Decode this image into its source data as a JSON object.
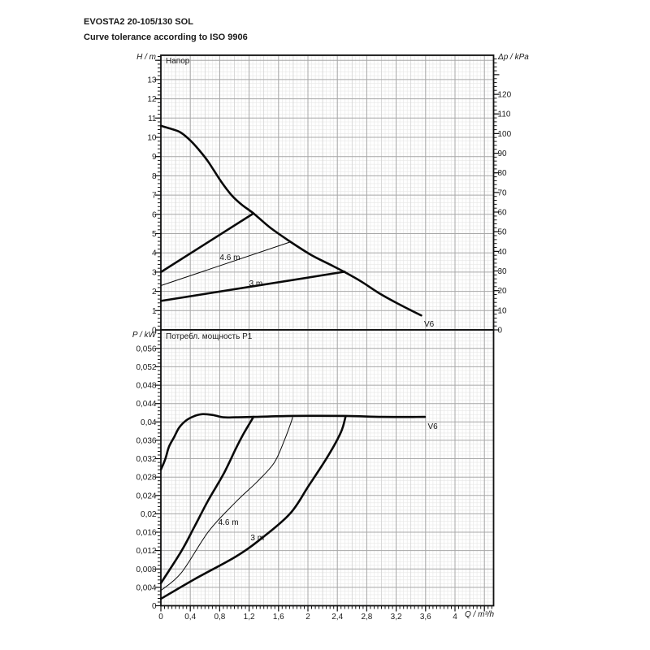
{
  "header": {
    "title": "EVOSTA2 20-105/130 SOL",
    "subtitle": "Curve tolerance according to ISO 9906"
  },
  "x_axis": {
    "label": "Q / m³/h",
    "min": 0,
    "max": 4.52,
    "minor_step": 0.05,
    "medium_step": 0.2,
    "major_step": 0.4,
    "ticks": [
      {
        "v": 0,
        "label": "0"
      },
      {
        "v": 0.4,
        "label": "0,4"
      },
      {
        "v": 0.8,
        "label": "0,8"
      },
      {
        "v": 1.2,
        "label": "1,2"
      },
      {
        "v": 1.6,
        "label": "1,6"
      },
      {
        "v": 2,
        "label": "2"
      },
      {
        "v": 2.4,
        "label": "2,4"
      },
      {
        "v": 2.8,
        "label": "2,8"
      },
      {
        "v": 3.2,
        "label": "3,2"
      },
      {
        "v": 3.6,
        "label": "3,6"
      },
      {
        "v": 4,
        "label": "4"
      }
    ]
  },
  "chart_data": [
    {
      "type": "line",
      "title": "Напор",
      "y_axis": {
        "label": "H / m",
        "min": 0,
        "max": 14.26,
        "minor_step": 0.2,
        "major_step": 1,
        "ticks": [
          {
            "v": 13,
            "label": "13"
          },
          {
            "v": 12,
            "label": "12"
          },
          {
            "v": 11,
            "label": "11"
          },
          {
            "v": 10,
            "label": "10"
          },
          {
            "v": 9,
            "label": "9"
          },
          {
            "v": 8,
            "label": "8"
          },
          {
            "v": 7,
            "label": "7"
          },
          {
            "v": 6,
            "label": "6"
          },
          {
            "v": 5,
            "label": "5"
          },
          {
            "v": 4,
            "label": "4"
          },
          {
            "v": 3,
            "label": "3"
          },
          {
            "v": 2,
            "label": "2"
          },
          {
            "v": 1,
            "label": "1"
          },
          {
            "v": 0,
            "label": "0"
          }
        ]
      },
      "y2_axis": {
        "label": "Δp / kPa",
        "min": 0,
        "max": 139.9,
        "minor_step": 2,
        "major_step": 10,
        "ticks": [
          {
            "v": 120,
            "label": "120"
          },
          {
            "v": 110,
            "label": "110"
          },
          {
            "v": 100,
            "label": "100"
          },
          {
            "v": 90,
            "label": "90"
          },
          {
            "v": 80,
            "label": "80"
          },
          {
            "v": 70,
            "label": "70"
          },
          {
            "v": 60,
            "label": "60"
          },
          {
            "v": 50,
            "label": "50"
          },
          {
            "v": 40,
            "label": "40"
          },
          {
            "v": 30,
            "label": "30"
          },
          {
            "v": 20,
            "label": "20"
          },
          {
            "v": 10,
            "label": "10"
          },
          {
            "v": 0,
            "label": "0"
          }
        ]
      },
      "series": [
        {
          "name": "max-speed-head-curve",
          "width": 2.6,
          "smooth": true,
          "points": [
            [
              0,
              10.6
            ],
            [
              0.13,
              10.45
            ],
            [
              0.27,
              10.25
            ],
            [
              0.41,
              9.8
            ],
            [
              0.55,
              9.2
            ],
            [
              0.65,
              8.7
            ],
            [
              0.82,
              7.7
            ],
            [
              0.96,
              7.0
            ],
            [
              1.1,
              6.5
            ],
            [
              1.26,
              6.05
            ],
            [
              1.49,
              5.3
            ],
            [
              1.76,
              4.58
            ],
            [
              2.04,
              3.9
            ],
            [
              2.27,
              3.45
            ],
            [
              2.49,
              3.02
            ],
            [
              2.73,
              2.5
            ],
            [
              2.97,
              1.9
            ],
            [
              3.23,
              1.35
            ],
            [
              3.54,
              0.75
            ]
          ]
        },
        {
          "name": "prop-pressure-6m-head",
          "width": 2.6,
          "smooth": false,
          "points": [
            [
              0,
              3.0
            ],
            [
              1.26,
              6.05
            ]
          ]
        },
        {
          "name": "prop-pressure-4.6m-head",
          "width": 1,
          "smooth": false,
          "points": [
            [
              0,
              2.3
            ],
            [
              1.77,
              4.58
            ]
          ]
        },
        {
          "name": "prop-pressure-3m-head",
          "width": 2.6,
          "smooth": false,
          "points": [
            [
              0,
              1.5
            ],
            [
              2.5,
              3.02
            ]
          ]
        }
      ],
      "annotations": [
        {
          "name": "label-4-6m-head",
          "text": "4.6 m",
          "x": 0.8,
          "y": 3.95
        },
        {
          "name": "label-3m-head",
          "text": "3 m",
          "x": 1.2,
          "y": 2.62
        },
        {
          "name": "label-v6-head",
          "text": "V6",
          "x": 3.58,
          "y": 0.52
        }
      ]
    },
    {
      "type": "line",
      "title": "Потребл. мощность P1",
      "y_axis": {
        "label": "P / kW",
        "min": 0,
        "max": 0.06,
        "minor_step": 0.0008,
        "major_step": 0.004,
        "ticks": [
          {
            "v": 0.056,
            "label": "0,056"
          },
          {
            "v": 0.052,
            "label": "0,052"
          },
          {
            "v": 0.048,
            "label": "0,048"
          },
          {
            "v": 0.044,
            "label": "0,044"
          },
          {
            "v": 0.04,
            "label": "0,04"
          },
          {
            "v": 0.036,
            "label": "0,036"
          },
          {
            "v": 0.032,
            "label": "0,032"
          },
          {
            "v": 0.028,
            "label": "0,028"
          },
          {
            "v": 0.024,
            "label": "0,024"
          },
          {
            "v": 0.02,
            "label": "0,02"
          },
          {
            "v": 0.016,
            "label": "0,016"
          },
          {
            "v": 0.012,
            "label": "0,012"
          },
          {
            "v": 0.008,
            "label": "0,008"
          },
          {
            "v": 0.004,
            "label": "0,004"
          },
          {
            "v": 0,
            "label": "0"
          }
        ]
      },
      "series": [
        {
          "name": "max-speed-power-curve",
          "width": 2.6,
          "smooth": true,
          "points": [
            [
              0,
              0.0296
            ],
            [
              0.06,
              0.0319
            ],
            [
              0.11,
              0.0346
            ],
            [
              0.18,
              0.0367
            ],
            [
              0.25,
              0.0388
            ],
            [
              0.35,
              0.0404
            ],
            [
              0.46,
              0.0413
            ],
            [
              0.57,
              0.0417
            ],
            [
              0.71,
              0.0415
            ],
            [
              0.85,
              0.041
            ],
            [
              1.02,
              0.041
            ],
            [
              1.26,
              0.0411
            ],
            [
              1.79,
              0.0413
            ],
            [
              2.51,
              0.0413
            ],
            [
              3.01,
              0.0411
            ],
            [
              3.59,
              0.0411
            ]
          ]
        },
        {
          "name": "prop-pressure-6m-power",
          "width": 2.6,
          "smooth": true,
          "points": [
            [
              0,
              0.0049
            ],
            [
              0.28,
              0.0119
            ],
            [
              0.46,
              0.0173
            ],
            [
              0.65,
              0.0231
            ],
            [
              0.85,
              0.0286
            ],
            [
              1.02,
              0.0342
            ],
            [
              1.13,
              0.0376
            ],
            [
              1.26,
              0.0411
            ]
          ]
        },
        {
          "name": "prop-pressure-4.6m-power",
          "width": 1,
          "smooth": true,
          "points": [
            [
              0,
              0.0033
            ],
            [
              0.28,
              0.0072
            ],
            [
              0.65,
              0.0162
            ],
            [
              1.02,
              0.0226
            ],
            [
              1.31,
              0.027
            ],
            [
              1.54,
              0.0311
            ],
            [
              1.68,
              0.036
            ],
            [
              1.77,
              0.0399
            ],
            [
              1.79,
              0.041
            ]
          ]
        },
        {
          "name": "prop-pressure-3m-power",
          "width": 2.6,
          "smooth": true,
          "points": [
            [
              0,
              0.0015
            ],
            [
              0.46,
              0.0058
            ],
            [
              1.02,
              0.0107
            ],
            [
              1.38,
              0.0148
            ],
            [
              1.76,
              0.0201
            ],
            [
              2.01,
              0.0261
            ],
            [
              2.27,
              0.0325
            ],
            [
              2.45,
              0.0378
            ],
            [
              2.51,
              0.0411
            ]
          ]
        }
      ],
      "annotations": [
        {
          "name": "label-4-6m-power",
          "text": "4.6 m",
          "x": 0.78,
          "y": 0.019
        },
        {
          "name": "label-3m-power",
          "text": "3 m",
          "x": 1.22,
          "y": 0.0157
        },
        {
          "name": "label-v6-power",
          "text": "V6",
          "x": 3.63,
          "y": 0.0398
        }
      ]
    }
  ]
}
